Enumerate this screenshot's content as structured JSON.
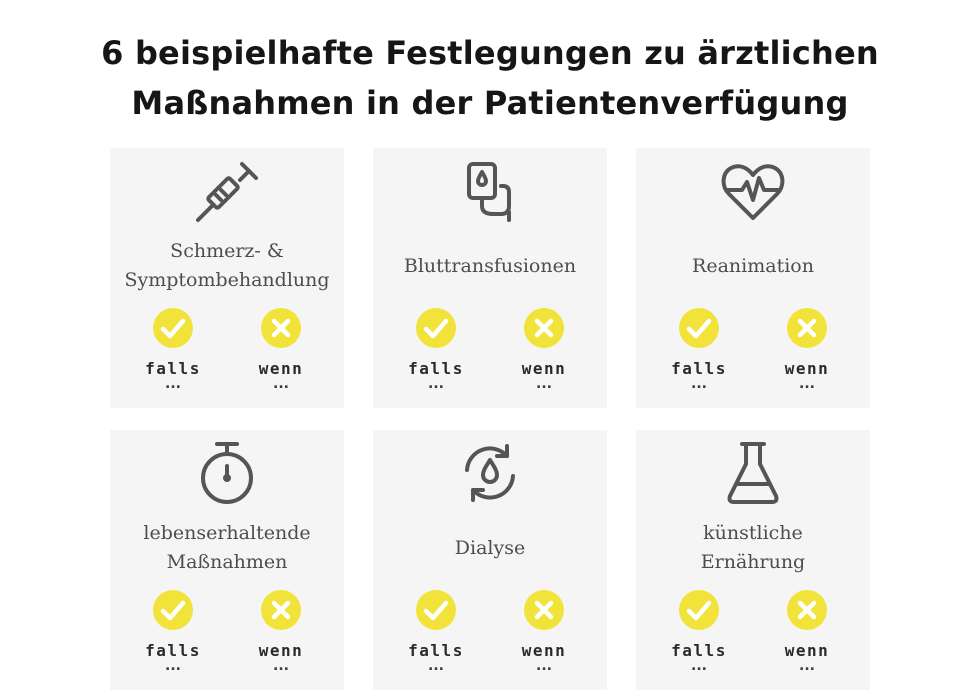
{
  "title": {
    "line1": "6 beispielhafte Festlegungen zu ärztlichen",
    "line2": "Maßnahmen in der Patientenverfügung"
  },
  "colors": {
    "accent": "#f2e33b",
    "icon": "#555555",
    "card": "#f5f5f5"
  },
  "cards": [
    {
      "icon": "syringe-icon",
      "label_lines": [
        "Schmerz- &",
        "Symptombehandlung"
      ],
      "yes_label": "falls",
      "no_label": "wenn",
      "yes_dots": "...",
      "no_dots": "..."
    },
    {
      "icon": "iv-bag-icon",
      "label_lines": [
        "Bluttransfusionen"
      ],
      "yes_label": "falls",
      "no_label": "wenn",
      "yes_dots": "...",
      "no_dots": "..."
    },
    {
      "icon": "heartbeat-icon",
      "label_lines": [
        "Reanimation"
      ],
      "yes_label": "falls",
      "no_label": "wenn",
      "yes_dots": "...",
      "no_dots": "..."
    },
    {
      "icon": "stopwatch-icon",
      "label_lines": [
        "lebenserhaltende",
        "Maßnahmen"
      ],
      "yes_label": "falls",
      "no_label": "wenn",
      "yes_dots": "...",
      "no_dots": "..."
    },
    {
      "icon": "dialysis-cycle-icon",
      "label_lines": [
        "Dialyse"
      ],
      "yes_label": "falls",
      "no_label": "wenn",
      "yes_dots": "...",
      "no_dots": "..."
    },
    {
      "icon": "flask-icon",
      "label_lines": [
        "künstliche",
        "Ernährung"
      ],
      "yes_label": "falls",
      "no_label": "wenn",
      "yes_dots": "...",
      "no_dots": "..."
    }
  ]
}
